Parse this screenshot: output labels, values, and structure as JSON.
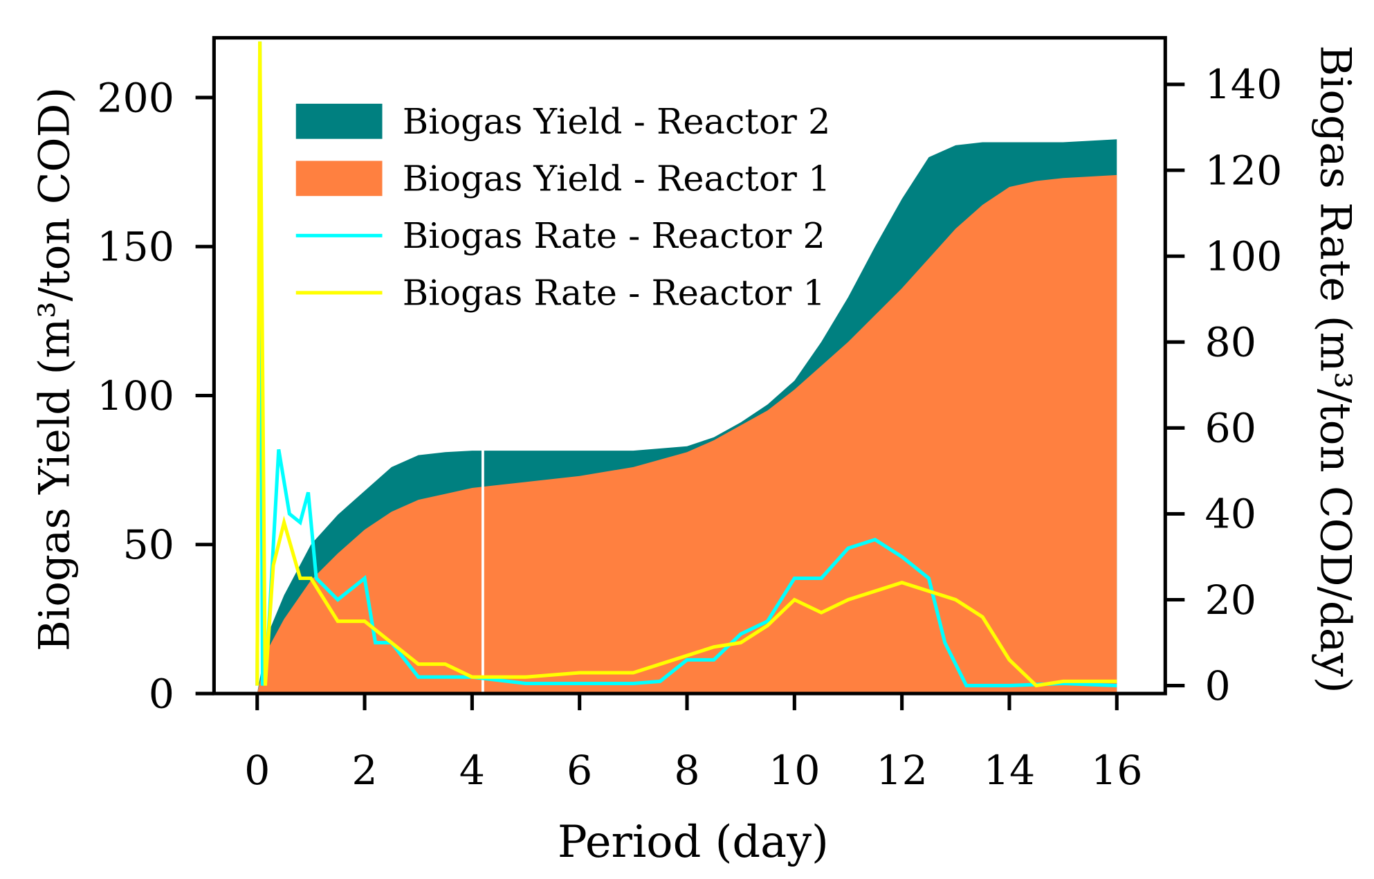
{
  "chart_data": {
    "type": "area",
    "xlabel": "Period (day)",
    "ylabel": "Biogas Yield (m³/ton COD)",
    "y2label": "Biogas Rate (m³/ton COD/day)",
    "xlim": [
      0,
      16
    ],
    "ylim": [
      0,
      200
    ],
    "y2lim": [
      0,
      140
    ],
    "xticks": [
      "0",
      "2",
      "4",
      "6",
      "8",
      "10",
      "12",
      "14",
      "16"
    ],
    "yticks": [
      "0",
      "50",
      "100",
      "150",
      "200"
    ],
    "y2ticks": [
      "0",
      "20",
      "40",
      "60",
      "80",
      "100",
      "120",
      "140"
    ],
    "legend_position": "top-left",
    "series": [
      {
        "name": "Biogas Yield - Reactor 2",
        "kind": "area",
        "axis": "left",
        "color": "#008080",
        "x": [
          0,
          0.2,
          0.5,
          1,
          1.5,
          2,
          2.5,
          3,
          3.5,
          4,
          5,
          6,
          7,
          8,
          8.5,
          9,
          9.5,
          10,
          10.5,
          11,
          11.5,
          12,
          12.5,
          13,
          13.5,
          14,
          15,
          16
        ],
        "y": [
          0,
          20,
          33,
          50,
          60,
          68,
          76,
          80,
          81,
          81.5,
          81.5,
          81.5,
          81.5,
          83,
          86,
          91,
          97,
          105,
          118,
          133,
          150,
          166,
          180,
          184,
          185,
          185,
          185,
          186
        ]
      },
      {
        "name": "Biogas Yield - Reactor 1",
        "kind": "area",
        "axis": "left",
        "color": "#FF8040",
        "x": [
          0,
          0.2,
          0.5,
          1,
          1.5,
          2,
          2.5,
          3,
          3.5,
          4,
          4.5,
          5,
          6,
          7,
          8,
          8.5,
          9,
          9.5,
          10,
          10.5,
          11,
          11.5,
          12,
          12.5,
          13,
          13.5,
          14,
          14.5,
          15,
          16
        ],
        "y": [
          0,
          15,
          25,
          38,
          47,
          55,
          61,
          65,
          67,
          69,
          70,
          71,
          73,
          76,
          81,
          85,
          90,
          95,
          102,
          110,
          118,
          127,
          136,
          146,
          156,
          164,
          170,
          172,
          173,
          174
        ]
      },
      {
        "name": "Biogas Rate - Reactor 2",
        "kind": "line",
        "axis": "right",
        "color": "#00FFFF",
        "x": [
          0,
          0.05,
          0.1,
          0.2,
          0.4,
          0.6,
          0.8,
          0.95,
          1.1,
          1.5,
          2,
          2.2,
          2.5,
          3,
          3.5,
          4,
          5,
          6,
          7,
          7.5,
          8,
          8.5,
          9,
          9.5,
          10,
          10.5,
          11,
          11.5,
          12,
          12.5,
          12.8,
          13.2,
          14,
          15,
          16
        ],
        "y": [
          0,
          150,
          0,
          10,
          55,
          40,
          38,
          45,
          25,
          20,
          25,
          10,
          10,
          2,
          2,
          2,
          0.5,
          0.5,
          0.5,
          1,
          6,
          6,
          12,
          15,
          25,
          25,
          32,
          34,
          30,
          25,
          10,
          0,
          0,
          0.5,
          0
        ]
      },
      {
        "name": "Biogas Rate - Reactor 1",
        "kind": "line",
        "axis": "right",
        "color": "#FFFF00",
        "x": [
          0,
          0.05,
          0.15,
          0.3,
          0.5,
          0.8,
          1,
          1.5,
          2,
          2.5,
          3,
          3.5,
          4,
          4.5,
          5,
          6,
          7,
          7.5,
          8,
          8.5,
          9,
          9.5,
          10,
          10.5,
          11,
          11.5,
          12,
          12.5,
          13,
          13.5,
          14,
          14.5,
          15,
          16
        ],
        "y": [
          0,
          150,
          0,
          28,
          38,
          25,
          25,
          15,
          15,
          10,
          5,
          5,
          2,
          2,
          2,
          3,
          3,
          5,
          7,
          9,
          10,
          14,
          20,
          17,
          20,
          22,
          24,
          22,
          20,
          16,
          6,
          0,
          1,
          1
        ]
      }
    ]
  }
}
